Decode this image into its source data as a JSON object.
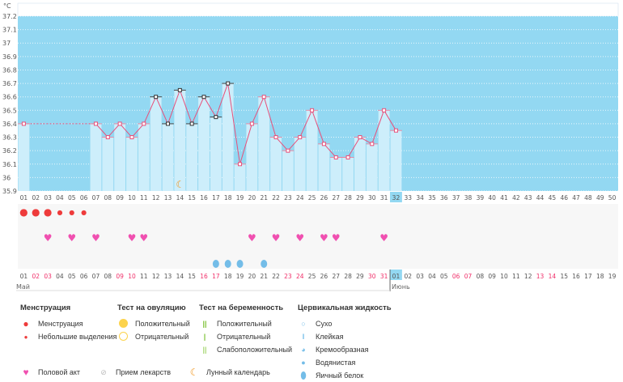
{
  "chart_data": {
    "type": "line",
    "unit_label": "°C",
    "ylim": [
      35.9,
      37.2
    ],
    "yticks": [
      "35.9",
      "36",
      "36.1",
      "36.2",
      "36.3",
      "36.4",
      "36.5",
      "36.6",
      "36.7",
      "36.8",
      "36.9",
      "37",
      "37.1",
      "37.2"
    ],
    "cycle_days": [
      "01",
      "02",
      "03",
      "04",
      "05",
      "06",
      "07",
      "08",
      "09",
      "10",
      "11",
      "12",
      "13",
      "14",
      "15",
      "16",
      "17",
      "18",
      "19",
      "20",
      "21",
      "22",
      "23",
      "24",
      "25",
      "26",
      "27",
      "28",
      "29",
      "30",
      "31",
      "32",
      "33",
      "34",
      "35",
      "36",
      "37",
      "38",
      "39",
      "40",
      "41",
      "42",
      "43",
      "44",
      "45",
      "46",
      "47",
      "48",
      "49",
      "50"
    ],
    "current_day": "32",
    "temperatures": [
      36.4,
      null,
      null,
      null,
      null,
      null,
      36.4,
      36.3,
      36.4,
      36.3,
      36.4,
      36.6,
      36.4,
      36.65,
      36.4,
      36.6,
      36.45,
      36.7,
      36.1,
      36.4,
      36.6,
      36.3,
      36.2,
      36.3,
      36.5,
      36.25,
      36.15,
      36.15,
      36.3,
      36.25,
      36.5,
      36.35
    ],
    "excluded_days": [
      12,
      13,
      14,
      15,
      16,
      17,
      18
    ],
    "menstruation_heavy": [
      1,
      2,
      3
    ],
    "menstruation_light": [
      4,
      5,
      6
    ],
    "intercourse": [
      3,
      5,
      7,
      10,
      11,
      20,
      22,
      24,
      26,
      27,
      31
    ],
    "cervical_egg_white": [
      17,
      18,
      19,
      21
    ],
    "moon": [
      14
    ],
    "dates": [
      "01",
      "02",
      "03",
      "04",
      "05",
      "06",
      "07",
      "08",
      "09",
      "10",
      "11",
      "12",
      "13",
      "14",
      "15",
      "16",
      "17",
      "18",
      "19",
      "20",
      "21",
      "22",
      "23",
      "24",
      "25",
      "26",
      "27",
      "28",
      "29",
      "30",
      "31",
      "01",
      "02",
      "03",
      "04",
      "05",
      "06",
      "07",
      "08",
      "09",
      "10",
      "11",
      "12",
      "13",
      "14",
      "15",
      "16",
      "17",
      "18",
      "19"
    ],
    "weekend_dates": [
      2,
      3,
      9,
      10,
      16,
      17,
      23,
      24,
      30,
      31,
      37,
      38,
      44,
      45
    ],
    "months": [
      {
        "label": "Май",
        "start": 1
      },
      {
        "label": "Июнь",
        "start": 32
      }
    ]
  },
  "colors": {
    "bg": "#93d8f2",
    "bar": "#cdeefb",
    "line": "#e8507a",
    "red": "#ee3b3b",
    "heart": "#f050b0",
    "drop": "#74bde8",
    "moon": "#f0961e",
    "weekend": "#f0306a"
  },
  "legend": {
    "menstruation": {
      "title": "Менструация",
      "items": [
        "Менструация",
        "Небольшие выделения"
      ]
    },
    "ovulation": {
      "title": "Тест на овуляцию",
      "items": [
        "Положительный",
        "Отрицательный"
      ]
    },
    "pregnancy": {
      "title": "Тест на беременность",
      "items": [
        "Положительный",
        "Отрицательный",
        "Слабоположительный"
      ]
    },
    "cervical": {
      "title": "Цервикальная жидкость",
      "items": [
        "Сухо",
        "Клейкая",
        "Кремообразная",
        "Водянистая",
        "Яичный белок"
      ]
    },
    "bottom": [
      "Половой акт",
      "Прием лекарств",
      "Лунный календарь"
    ]
  }
}
